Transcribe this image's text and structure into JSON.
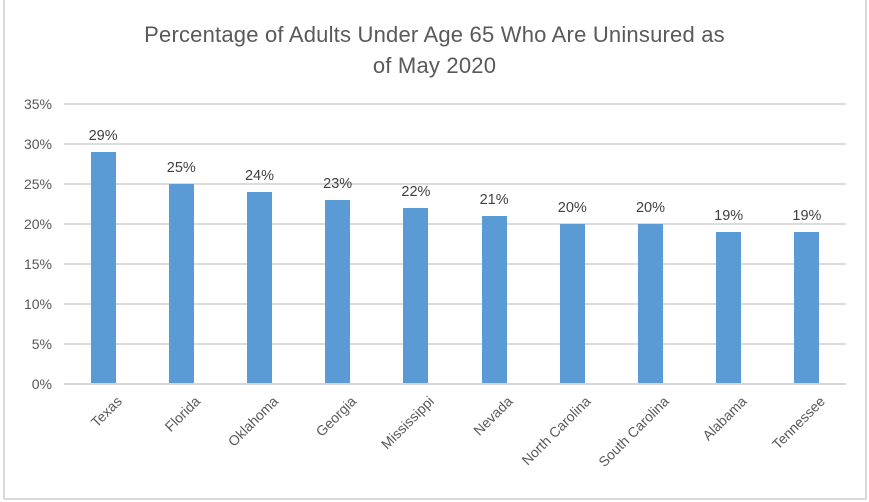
{
  "chart_data": {
    "type": "bar",
    "title": "Percentage of Adults Under Age 65 Who Are Uninsured as of May 2020",
    "title_lines": [
      "Percentage of Adults Under Age 65 Who Are Uninsured as",
      "of May 2020"
    ],
    "categories": [
      "Texas",
      "Florida",
      "Oklahoma",
      "Georgia",
      "Mississippi",
      "Nevada",
      "North Carolina",
      "South Carolina",
      "Alabama",
      "Tennessee"
    ],
    "values": [
      29,
      25,
      24,
      23,
      22,
      21,
      20,
      20,
      19,
      19
    ],
    "data_labels": [
      "29%",
      "25%",
      "24%",
      "23%",
      "22%",
      "21%",
      "20%",
      "20%",
      "19%",
      "19%"
    ],
    "y_ticks": [
      {
        "value": 0,
        "label": "0%"
      },
      {
        "value": 5,
        "label": "5%"
      },
      {
        "value": 10,
        "label": "10%"
      },
      {
        "value": 15,
        "label": "15%"
      },
      {
        "value": 20,
        "label": "20%"
      },
      {
        "value": 25,
        "label": "25%"
      },
      {
        "value": 30,
        "label": "30%"
      },
      {
        "value": 35,
        "label": "35%"
      }
    ],
    "ylim": [
      0,
      35
    ],
    "xlabel": "",
    "ylabel": "",
    "grid": true,
    "legend": "none",
    "x_tick_rotation_deg": 45,
    "colors": {
      "bar": "#5B9BD5",
      "gridline": "#DBDBDB",
      "axis_line": "#D6D6D6",
      "title_text": "#595959",
      "tick_label_text": "#595959",
      "data_label_text": "#404040",
      "chart_border": "#D9D9D9",
      "background": "#FFFFFF"
    }
  }
}
